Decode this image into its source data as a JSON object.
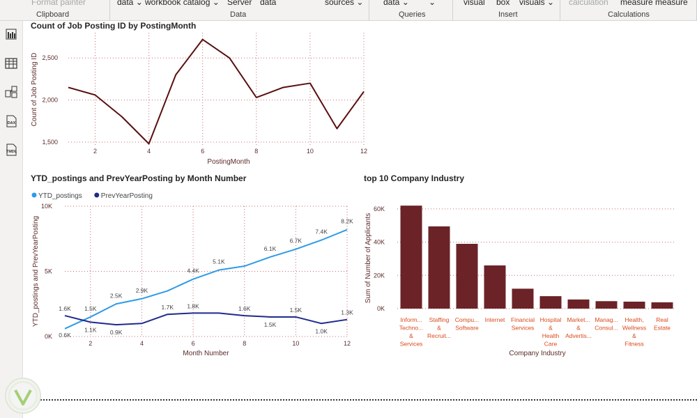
{
  "ribbon": {
    "groups": [
      {
        "label": "Clipboard",
        "items": [
          {
            "text": "Format painter",
            "dim": true
          }
        ]
      },
      {
        "label": "Data",
        "items": [
          {
            "text": "data ⌄"
          },
          {
            "text": "workbook catalog ⌄"
          },
          {
            "text": "Server"
          },
          {
            "text": "data"
          },
          {
            "text": "sources ⌄"
          }
        ]
      },
      {
        "label": "Queries",
        "items": [
          {
            "text": "data ⌄"
          },
          {
            "text": "⌄"
          }
        ]
      },
      {
        "label": "Insert",
        "items": [
          {
            "text": "visual"
          },
          {
            "text": "box"
          },
          {
            "text": "visuals ⌄"
          }
        ]
      },
      {
        "label": "Calculations",
        "items": [
          {
            "text": "calculation",
            "dim": true
          },
          {
            "text": "measure measure"
          }
        ]
      }
    ]
  },
  "left_rail": {
    "items": [
      {
        "name": "report-view-icon"
      },
      {
        "name": "table-view-icon"
      },
      {
        "name": "model-view-icon"
      },
      {
        "name": "dax-query-view-icon",
        "text": "DAX"
      },
      {
        "name": "tmdl-view-icon",
        "text": "TMDL"
      }
    ]
  },
  "colors": {
    "maroon": "#5a0f0f",
    "bar": "#6b2328",
    "ytd": "#2d9be8",
    "prev": "#1f2a8c",
    "grid": "#c9696f",
    "axis_text": "#5b2a2a",
    "category_text": "#d94a1a"
  },
  "chart_data": [
    {
      "type": "line",
      "title": "Count of Job Posting ID by PostingMonth",
      "xlabel": "PostingMonth",
      "ylabel": "Count of Job Posting ID",
      "x": [
        1,
        2,
        3,
        4,
        5,
        6,
        7,
        8,
        9,
        10,
        11,
        12
      ],
      "values": [
        2150,
        2060,
        1800,
        1480,
        2300,
        2720,
        2500,
        2030,
        2150,
        2200,
        1660,
        2100
      ],
      "xlim": [
        1,
        12
      ],
      "ylim": [
        1450,
        2800
      ],
      "xticks": [
        2,
        4,
        6,
        8,
        10,
        12
      ],
      "yticks": [
        1500,
        2000,
        2500
      ],
      "ytick_labels": [
        "1,500",
        "2,000",
        "2,500"
      ]
    },
    {
      "type": "line",
      "title": "YTD_postings and PrevYearPosting by Month Number",
      "xlabel": "Month Number",
      "ylabel": "YTD_postings and PrevYearPosting",
      "legend": [
        "YTD_postings",
        "PrevYearPosting"
      ],
      "x": [
        1,
        2,
        3,
        4,
        5,
        6,
        7,
        8,
        9,
        10,
        11,
        12
      ],
      "xlim": [
        1,
        12
      ],
      "ylim": [
        0,
        10000
      ],
      "xticks": [
        2,
        4,
        6,
        8,
        10,
        12
      ],
      "yticks": [
        0,
        5000,
        10000
      ],
      "ytick_labels": [
        "0K",
        "5K",
        "10K"
      ],
      "series": [
        {
          "name": "YTD_postings",
          "values": [
            600,
            1500,
            2500,
            2900,
            3500,
            4400,
            5100,
            5400,
            6100,
            6700,
            7400,
            8200
          ],
          "labels": [
            "0.6K",
            "1.5K",
            "2.5K",
            "2.9K",
            "",
            "4.4K",
            "5.1K",
            "",
            "6.1K",
            "6.7K",
            "7.4K",
            "8.2K"
          ]
        },
        {
          "name": "PrevYearPosting",
          "values": [
            1600,
            1100,
            900,
            1000,
            1700,
            1800,
            1800,
            1600,
            1500,
            1500,
            1000,
            1300
          ],
          "labels": [
            "1.6K",
            "1.1K",
            "0.9K",
            "",
            "1.7K",
            "1.8K",
            "",
            "1.6K",
            "1.5K",
            "1.5K",
            "1.0K",
            "1.3K"
          ]
        }
      ]
    },
    {
      "type": "bar",
      "title": "top 10 Company Industry",
      "xlabel": "Company Industry",
      "ylabel": "Sum of Number of Applicants",
      "ylim": [
        0,
        65000
      ],
      "yticks": [
        0,
        20000,
        40000,
        60000
      ],
      "ytick_labels": [
        "0K",
        "20K",
        "40K",
        "60K"
      ],
      "categories": [
        [
          "Inform...",
          "Techno...",
          "&",
          "Services"
        ],
        [
          "Staffing",
          "&",
          "Recruit..."
        ],
        [
          "Compu...",
          "Software"
        ],
        [
          "Internet"
        ],
        [
          "Financial",
          "Services"
        ],
        [
          "Hospital",
          "&",
          "Health",
          "Care"
        ],
        [
          "Market...",
          "&",
          "Advertis..."
        ],
        [
          "Manag...",
          "Consul..."
        ],
        [
          "Health,",
          "Wellness",
          "&",
          "Fitness"
        ],
        [
          "Real",
          "Estate"
        ]
      ],
      "values": [
        62000,
        49500,
        39000,
        26000,
        12000,
        7500,
        5500,
        4500,
        4200,
        3800
      ]
    }
  ]
}
